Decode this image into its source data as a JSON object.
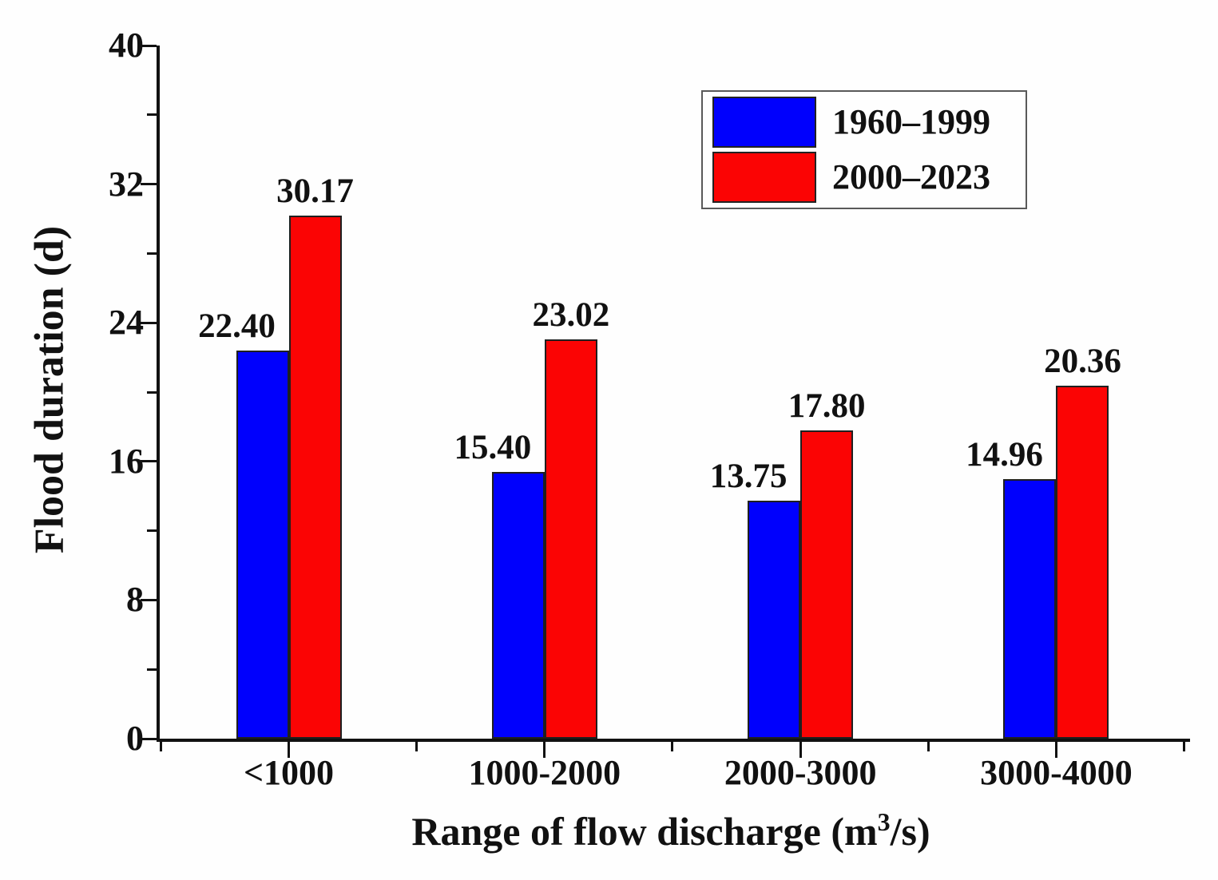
{
  "chart_data": {
    "type": "bar",
    "title": "",
    "categories": [
      "<1000",
      "1000-2000",
      "2000-3000",
      "3000-4000"
    ],
    "series": [
      {
        "name": "1960–1999",
        "color": "#0000fd",
        "values": [
          22.4,
          15.4,
          13.75,
          14.96
        ]
      },
      {
        "name": "2000–2023",
        "color": "#fb0404",
        "values": [
          30.17,
          23.02,
          17.8,
          20.36
        ]
      }
    ],
    "value_label_decimals": 2,
    "xlabel": {
      "prefix": "Range of flow discharge (m",
      "superscript": "3",
      "suffix": "/s)"
    },
    "ylabel": "Flood duration (d)",
    "ylim": [
      0,
      40
    ],
    "ytick_step": 8,
    "yminor_step": 4,
    "yticks": [
      "0",
      "8",
      "16",
      "24",
      "32",
      "40"
    ],
    "grid": false,
    "legend_position": "top-right",
    "colors": {
      "bar_outline": "#1f1f1f",
      "axis": "#111111",
      "text": "#111111",
      "background": "#fefefe"
    }
  }
}
